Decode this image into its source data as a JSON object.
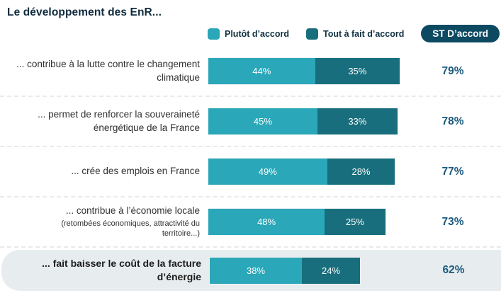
{
  "title": "Le développement des EnR...",
  "legend": {
    "items": [
      {
        "label": "Plutôt d’accord",
        "color": "#2AA7B8"
      },
      {
        "label": "Tout à fait d’accord",
        "color": "#186E7C"
      }
    ],
    "badge": "ST D’accord"
  },
  "colors": {
    "plutot_daccord": "#2AA7B8",
    "tout_a_fait_daccord": "#186E7C",
    "badge_background": "#0D4A62",
    "total_text": "#1B5A7E",
    "title_text": "#0F2B3D",
    "highlight_row_background": "#E7EDEF"
  },
  "rows": [
    {
      "label": "... contribue à la lutte contre le changement climatique",
      "sublabel": "",
      "seg1": "44%",
      "seg2": "35%",
      "total": "79%"
    },
    {
      "label": "... permet de renforcer la souveraineté énergétique de la France",
      "sublabel": "",
      "seg1": "45%",
      "seg2": "33%",
      "total": "78%"
    },
    {
      "label": "... crée des emplois en France",
      "sublabel": "",
      "seg1": "49%",
      "seg2": "28%",
      "total": "77%"
    },
    {
      "label": "... contribue à l’économie locale",
      "sublabel": "(retombées économiques, attractivité du territoire...)",
      "seg1": "48%",
      "seg2": "25%",
      "total": "73%"
    },
    {
      "label": "... fait baisser le coût de la facture d’énergie",
      "sublabel": "",
      "seg1": "38%",
      "seg2": "24%",
      "total": "62%"
    }
  ],
  "chart_data": {
    "type": "bar",
    "orientation": "horizontal",
    "stacked": true,
    "title": "Le développement des EnR...",
    "categories": [
      "... contribue à la lutte contre le changement climatique",
      "... permet de renforcer la souveraineté énergétique de la France",
      "... crée des emplois en France",
      "... contribue à l’économie locale (retombées économiques, attractivité du territoire...)",
      "... fait baisser le coût de la facture d’énergie"
    ],
    "series": [
      {
        "name": "Plutôt d’accord",
        "color": "#2AA7B8",
        "values": [
          44,
          45,
          49,
          48,
          38
        ]
      },
      {
        "name": "Tout à fait d’accord",
        "color": "#186E7C",
        "values": [
          35,
          33,
          28,
          25,
          24
        ]
      }
    ],
    "totals": {
      "label": "ST D’accord",
      "values": [
        79,
        78,
        77,
        73,
        62
      ]
    },
    "xlim": [
      0,
      100
    ],
    "value_suffix": "%",
    "legend_position": "top",
    "grid": false
  }
}
